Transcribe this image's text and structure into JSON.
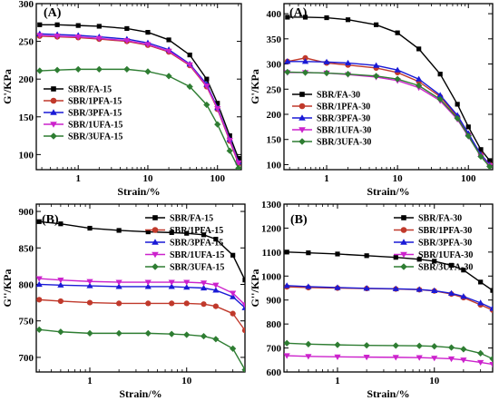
{
  "chart_data": [
    {
      "type": "line",
      "panel_label": "(A)",
      "xlabel": "Strain/%",
      "ylabel": "G'/KPa",
      "xscale": "log",
      "xlim": [
        0.25,
        220
      ],
      "ylim": [
        80,
        300
      ],
      "xticks": [
        1,
        10,
        100
      ],
      "xtick_labels": [
        "1",
        "10",
        "100"
      ],
      "yticks": [
        100,
        150,
        200,
        250,
        300
      ],
      "ytick_labels": [
        "100",
        "150",
        "200",
        "250",
        "300"
      ],
      "legend_position": "center-left",
      "series": [
        {
          "name": "SBR/FA-15",
          "color": "#000000",
          "marker": "square",
          "x": [
            0.28,
            0.5,
            1,
            2,
            5,
            10,
            20,
            40,
            70,
            100,
            150,
            200
          ],
          "y": [
            272,
            272,
            271,
            270,
            267,
            262,
            252,
            232,
            200,
            168,
            125,
            95
          ]
        },
        {
          "name": "SBR/1PFA-15",
          "color": "#c0392b",
          "marker": "circle",
          "x": [
            0.28,
            0.5,
            1,
            2,
            5,
            10,
            20,
            40,
            70,
            100,
            150,
            200
          ],
          "y": [
            257,
            256,
            255,
            253,
            250,
            245,
            236,
            218,
            190,
            160,
            118,
            88
          ]
        },
        {
          "name": "SBR/3PFA-15",
          "color": "#1a1ad6",
          "marker": "triangle-up",
          "x": [
            0.28,
            0.5,
            1,
            2,
            5,
            10,
            20,
            40,
            70,
            100,
            150,
            200
          ],
          "y": [
            260,
            259,
            258,
            256,
            253,
            248,
            239,
            220,
            193,
            162,
            120,
            90
          ]
        },
        {
          "name": "SBR/1UFA-15",
          "color": "#cc22cc",
          "marker": "triangle-down",
          "x": [
            0.28,
            0.5,
            1,
            2,
            5,
            10,
            20,
            40,
            70,
            100,
            150,
            200
          ],
          "y": [
            258,
            257,
            256,
            254,
            251,
            246,
            237,
            219,
            191,
            161,
            119,
            89
          ]
        },
        {
          "name": "SBR/3UFA-15",
          "color": "#2e7d32",
          "marker": "diamond",
          "x": [
            0.28,
            0.5,
            1,
            2,
            5,
            10,
            20,
            40,
            70,
            100,
            150,
            200
          ],
          "y": [
            211,
            212,
            213,
            213,
            213,
            210,
            204,
            190,
            166,
            140,
            105,
            82
          ]
        }
      ]
    },
    {
      "type": "line",
      "panel_label": "(A)",
      "xlabel": "Strain/%",
      "ylabel": "G'/KPa",
      "xscale": "log",
      "xlim": [
        0.25,
        220
      ],
      "ylim": [
        90,
        420
      ],
      "xticks": [
        1,
        10,
        100
      ],
      "xtick_labels": [
        "1",
        "10",
        "100"
      ],
      "yticks": [
        100,
        150,
        200,
        250,
        300,
        350,
        400
      ],
      "ytick_labels": [
        "100",
        "150",
        "200",
        "250",
        "300",
        "350",
        "400"
      ],
      "legend_position": "center-left",
      "series": [
        {
          "name": "SBR/FA-30",
          "color": "#000000",
          "marker": "square",
          "x": [
            0.28,
            0.5,
            1,
            2,
            5,
            10,
            20,
            40,
            70,
            100,
            150,
            200
          ],
          "y": [
            393,
            393,
            392,
            388,
            378,
            362,
            330,
            280,
            220,
            175,
            130,
            108
          ]
        },
        {
          "name": "SBR/1PFA-30",
          "color": "#c0392b",
          "marker": "circle",
          "x": [
            0.28,
            0.5,
            1,
            2,
            5,
            10,
            20,
            40,
            70,
            100,
            150,
            200
          ],
          "y": [
            305,
            312,
            302,
            298,
            292,
            283,
            265,
            235,
            195,
            160,
            120,
            100
          ]
        },
        {
          "name": "SBR/3PFA-30",
          "color": "#1a1ad6",
          "marker": "triangle-up",
          "x": [
            0.28,
            0.5,
            1,
            2,
            5,
            10,
            20,
            40,
            70,
            100,
            150,
            200
          ],
          "y": [
            305,
            305,
            304,
            302,
            297,
            288,
            270,
            238,
            198,
            162,
            120,
            100
          ]
        },
        {
          "name": "SBR/1UFA-30",
          "color": "#cc22cc",
          "marker": "triangle-down",
          "x": [
            0.28,
            0.5,
            1,
            2,
            5,
            10,
            20,
            40,
            70,
            100,
            150,
            200
          ],
          "y": [
            283,
            283,
            282,
            279,
            274,
            267,
            253,
            227,
            190,
            156,
            117,
            98
          ]
        },
        {
          "name": "SBR/3UFA-30",
          "color": "#2e7d32",
          "marker": "diamond",
          "x": [
            0.28,
            0.5,
            1,
            2,
            5,
            10,
            20,
            40,
            70,
            100,
            150,
            200
          ],
          "y": [
            284,
            283,
            282,
            280,
            276,
            270,
            257,
            230,
            192,
            157,
            116,
            96
          ]
        }
      ]
    },
    {
      "type": "line",
      "panel_label": "(B)",
      "xlabel": "Strain/%",
      "ylabel": "G''/KPa",
      "xscale": "log",
      "xlim": [
        0.28,
        40
      ],
      "ylim": [
        680,
        910
      ],
      "xticks": [
        1,
        10
      ],
      "xtick_labels": [
        "1",
        "10"
      ],
      "yticks": [
        700,
        750,
        800,
        850,
        900
      ],
      "ytick_labels": [
        "700",
        "750",
        "800",
        "850",
        "900"
      ],
      "legend_position": "top-right",
      "series": [
        {
          "name": "SBR/FA-15",
          "color": "#000000",
          "marker": "square",
          "x": [
            0.3,
            0.5,
            1,
            2,
            4,
            7,
            10,
            15,
            20,
            30,
            40
          ],
          "y": [
            886,
            883,
            877,
            874,
            872,
            871,
            870,
            868,
            862,
            840,
            806
          ]
        },
        {
          "name": "SBR/1PFA-15",
          "color": "#c0392b",
          "marker": "circle",
          "x": [
            0.3,
            0.5,
            1,
            2,
            4,
            7,
            10,
            15,
            20,
            30,
            40
          ],
          "y": [
            779,
            777,
            775,
            774,
            774,
            774,
            774,
            773,
            770,
            760,
            737
          ]
        },
        {
          "name": "SBR/3PFA-15",
          "color": "#1a1ad6",
          "marker": "triangle-up",
          "x": [
            0.3,
            0.5,
            1,
            2,
            4,
            7,
            10,
            15,
            20,
            30,
            40
          ],
          "y": [
            800,
            799,
            798,
            797,
            797,
            797,
            796,
            795,
            792,
            783,
            768
          ]
        },
        {
          "name": "SBR/1UFA-15",
          "color": "#cc22cc",
          "marker": "triangle-down",
          "x": [
            0.3,
            0.5,
            1,
            2,
            4,
            7,
            10,
            15,
            20,
            30,
            40
          ],
          "y": [
            808,
            806,
            804,
            803,
            803,
            803,
            803,
            802,
            799,
            788,
            772
          ]
        },
        {
          "name": "SBR/3UFA-15",
          "color": "#2e7d32",
          "marker": "diamond",
          "x": [
            0.3,
            0.5,
            1,
            2,
            4,
            7,
            10,
            15,
            20,
            30,
            40
          ],
          "y": [
            738,
            735,
            733,
            733,
            733,
            732,
            731,
            729,
            725,
            712,
            683
          ]
        }
      ]
    },
    {
      "type": "line",
      "panel_label": "(B)",
      "xlabel": "Strain/%",
      "ylabel": "G''/KPa",
      "xscale": "log",
      "xlim": [
        0.28,
        40
      ],
      "ylim": [
        600,
        1300
      ],
      "xticks": [
        1,
        10
      ],
      "xtick_labels": [
        "1",
        "10"
      ],
      "yticks": [
        600,
        700,
        800,
        900,
        1000,
        1100,
        1200,
        1300
      ],
      "ytick_labels": [
        "600",
        "700",
        "800",
        "900",
        "1000",
        "1100",
        "1200",
        "1300"
      ],
      "legend_position": "top-right",
      "series": [
        {
          "name": "SBR/FA-30",
          "color": "#000000",
          "marker": "square",
          "x": [
            0.3,
            0.5,
            1,
            2,
            4,
            7,
            10,
            15,
            20,
            30,
            40
          ],
          "y": [
            1100,
            1097,
            1092,
            1085,
            1078,
            1070,
            1062,
            1045,
            1025,
            975,
            940
          ]
        },
        {
          "name": "SBR/1PFA-30",
          "color": "#c0392b",
          "marker": "circle",
          "x": [
            0.3,
            0.5,
            1,
            2,
            4,
            7,
            10,
            15,
            20,
            30,
            40
          ],
          "y": [
            955,
            952,
            950,
            948,
            946,
            943,
            938,
            925,
            910,
            880,
            858
          ]
        },
        {
          "name": "SBR/3PFA-30",
          "color": "#1a1ad6",
          "marker": "triangle-up",
          "x": [
            0.3,
            0.5,
            1,
            2,
            4,
            7,
            10,
            15,
            20,
            30,
            40
          ],
          "y": [
            960,
            956,
            952,
            949,
            947,
            944,
            939,
            928,
            915,
            888,
            865
          ]
        },
        {
          "name": "SBR/1UFA-30",
          "color": "#cc22cc",
          "marker": "triangle-down",
          "x": [
            0.3,
            0.5,
            1,
            2,
            4,
            7,
            10,
            15,
            20,
            30,
            40
          ],
          "y": [
            668,
            665,
            663,
            662,
            661,
            660,
            658,
            655,
            650,
            640,
            632
          ]
        },
        {
          "name": "SBR/3UFA-30",
          "color": "#2e7d32",
          "marker": "diamond",
          "x": [
            0.3,
            0.5,
            1,
            2,
            4,
            7,
            10,
            15,
            20,
            30,
            40
          ],
          "y": [
            720,
            716,
            713,
            711,
            710,
            709,
            707,
            702,
            695,
            678,
            655
          ]
        }
      ]
    }
  ]
}
